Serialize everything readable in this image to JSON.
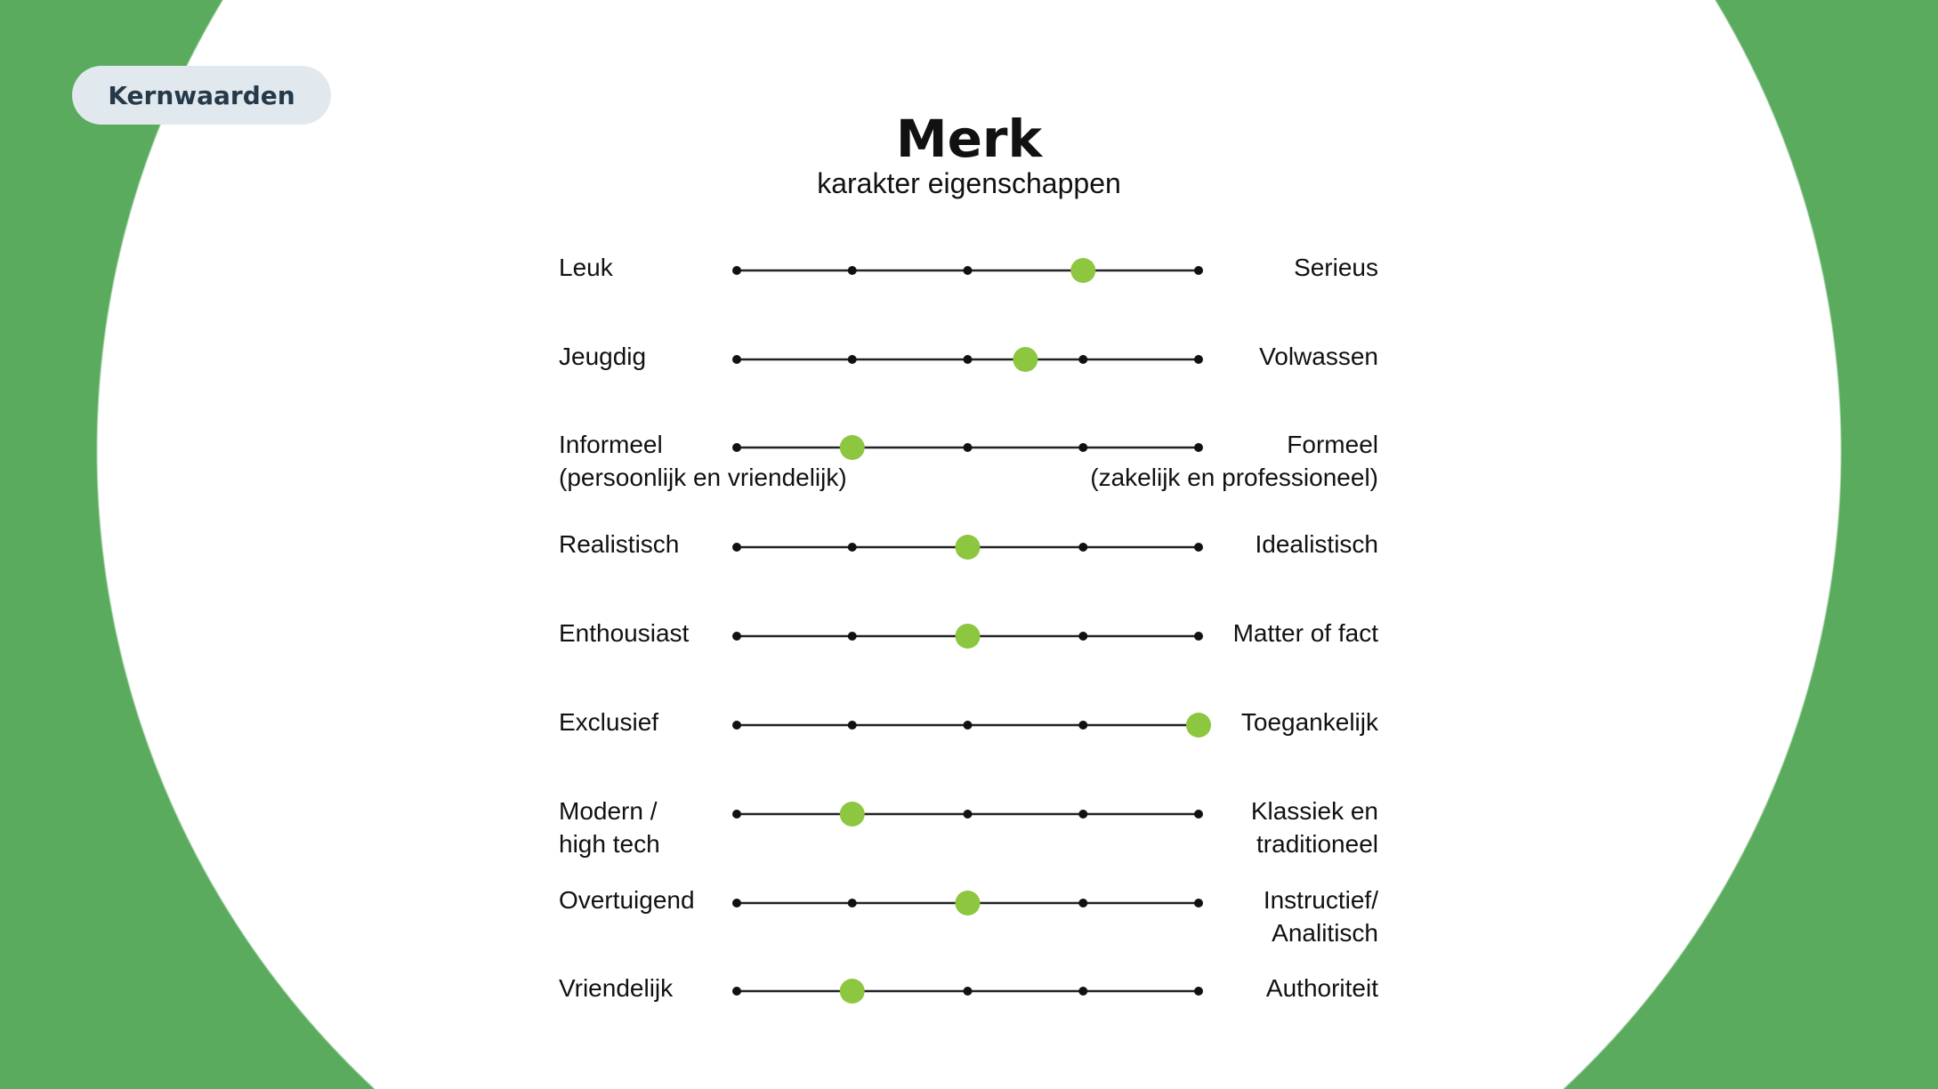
{
  "badge": {
    "label": "Kernwaarden"
  },
  "header": {
    "title": "Merk",
    "subtitle": "karakter eigenschappen"
  },
  "colors": {
    "background": "#5aab5e",
    "marker": "#8dc63f",
    "badge_bg": "#e1e8ee",
    "badge_text": "#243a4a"
  },
  "chart_data": {
    "type": "semantic-differential",
    "scale_points": 5,
    "rows": [
      {
        "left": "Leuk",
        "left_sub": "",
        "right": "Serieus",
        "right_sub": "",
        "value": 4
      },
      {
        "left": "Jeugdig",
        "left_sub": "",
        "right": "Volwassen",
        "right_sub": "",
        "value": 3.5
      },
      {
        "left": "Informeel",
        "left_sub": "(persoonlijk en vriendelijk)",
        "right": "Formeel",
        "right_sub": "(zakelijk en professioneel)",
        "value": 2
      },
      {
        "left": "Realistisch",
        "left_sub": "",
        "right": "Idealistisch",
        "right_sub": "",
        "value": 3
      },
      {
        "left": "Enthousiast",
        "left_sub": "",
        "right": "Matter of fact",
        "right_sub": "",
        "value": 3
      },
      {
        "left": "Exclusief",
        "left_sub": "",
        "right": "Toegankelijk",
        "right_sub": "",
        "value": 5
      },
      {
        "left": "Modern /",
        "left_sub": "high tech",
        "right": "Klassiek en",
        "right_sub": "traditioneel",
        "value": 2
      },
      {
        "left": "Overtuigend",
        "left_sub": "",
        "right": "Instructief/",
        "right_sub": "Analitisch",
        "value": 3
      },
      {
        "left": "Vriendelijk",
        "left_sub": "",
        "right": "Authoriteit",
        "right_sub": "",
        "value": 2
      }
    ]
  }
}
